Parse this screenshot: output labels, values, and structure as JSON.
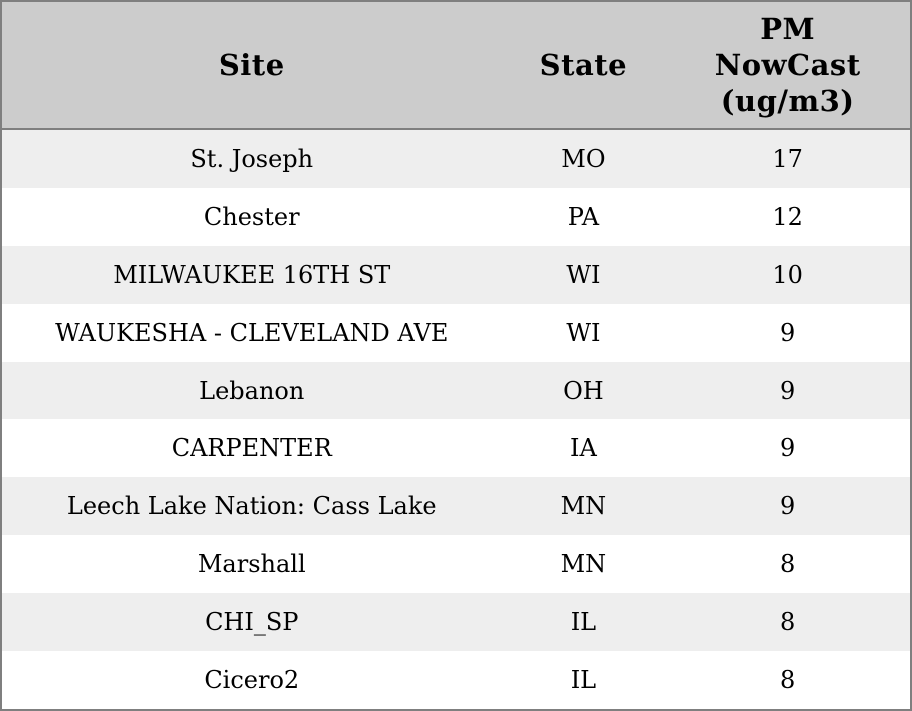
{
  "table": {
    "headers": {
      "site": "Site",
      "state": "State",
      "pm": "PM\nNowCast\n(ug/m3)"
    },
    "rows": [
      {
        "site": "St. Joseph",
        "state": "MO",
        "pm": "17"
      },
      {
        "site": "Chester",
        "state": "PA",
        "pm": "12"
      },
      {
        "site": "MILWAUKEE 16TH ST",
        "state": "WI",
        "pm": "10"
      },
      {
        "site": "WAUKESHA - CLEVELAND AVE",
        "state": "WI",
        "pm": "9"
      },
      {
        "site": "Lebanon",
        "state": "OH",
        "pm": "9"
      },
      {
        "site": "CARPENTER",
        "state": "IA",
        "pm": "9"
      },
      {
        "site": "Leech Lake Nation: Cass Lake",
        "state": "MN",
        "pm": "9"
      },
      {
        "site": "Marshall",
        "state": "MN",
        "pm": "8"
      },
      {
        "site": "CHI_SP",
        "state": "IL",
        "pm": "8"
      },
      {
        "site": "Cicero2",
        "state": "IL",
        "pm": "8"
      }
    ]
  },
  "chart_data": {
    "type": "table",
    "title": "",
    "columns": [
      "Site",
      "State",
      "PM NowCast (ug/m3)"
    ],
    "rows": [
      [
        "St. Joseph",
        "MO",
        17
      ],
      [
        "Chester",
        "PA",
        12
      ],
      [
        "MILWAUKEE 16TH ST",
        "WI",
        10
      ],
      [
        "WAUKESHA - CLEVELAND AVE",
        "WI",
        9
      ],
      [
        "Lebanon",
        "OH",
        9
      ],
      [
        "CARPENTER",
        "IA",
        9
      ],
      [
        "Leech Lake Nation: Cass Lake",
        "MN",
        9
      ],
      [
        "Marshall",
        "MN",
        8
      ],
      [
        "CHI_SP",
        "IL",
        8
      ],
      [
        "Cicero2",
        "IL",
        8
      ]
    ]
  },
  "colors": {
    "header_bg": "#cccccc",
    "row_alt_bg": "#eeeeee",
    "border": "#7f7f7f"
  }
}
